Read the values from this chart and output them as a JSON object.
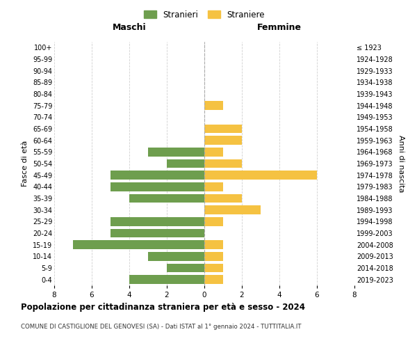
{
  "age_groups": [
    "100+",
    "95-99",
    "90-94",
    "85-89",
    "80-84",
    "75-79",
    "70-74",
    "65-69",
    "60-64",
    "55-59",
    "50-54",
    "45-49",
    "40-44",
    "35-39",
    "30-34",
    "25-29",
    "20-24",
    "15-19",
    "10-14",
    "5-9",
    "0-4"
  ],
  "birth_years": [
    "≤ 1923",
    "1924-1928",
    "1929-1933",
    "1934-1938",
    "1939-1943",
    "1944-1948",
    "1949-1953",
    "1954-1958",
    "1959-1963",
    "1964-1968",
    "1969-1973",
    "1974-1978",
    "1979-1983",
    "1984-1988",
    "1989-1993",
    "1994-1998",
    "1999-2003",
    "2004-2008",
    "2009-2013",
    "2014-2018",
    "2019-2023"
  ],
  "maschi": [
    0,
    0,
    0,
    0,
    0,
    0,
    0,
    0,
    0,
    3,
    2,
    5,
    5,
    4,
    0,
    5,
    5,
    7,
    3,
    2,
    4
  ],
  "femmine": [
    0,
    0,
    0,
    0,
    0,
    1,
    0,
    2,
    2,
    1,
    2,
    6,
    1,
    2,
    3,
    1,
    0,
    1,
    1,
    1,
    1
  ],
  "maschi_color": "#6e9e4e",
  "femmine_color": "#f5c242",
  "title": "Popolazione per cittadinanza straniera per età e sesso - 2024",
  "subtitle": "COMUNE DI CASTIGLIONE DEL GENOVESI (SA) - Dati ISTAT al 1° gennaio 2024 - TUTTITALIA.IT",
  "ylabel_left": "Fasce di età",
  "ylabel_right": "Anni di nascita",
  "xlabel_maschi": "Maschi",
  "xlabel_femmine": "Femmine",
  "legend_stranieri": "Stranieri",
  "legend_straniere": "Straniere",
  "xlim": 8,
  "background_color": "#ffffff",
  "grid_color": "#d0d0d0"
}
